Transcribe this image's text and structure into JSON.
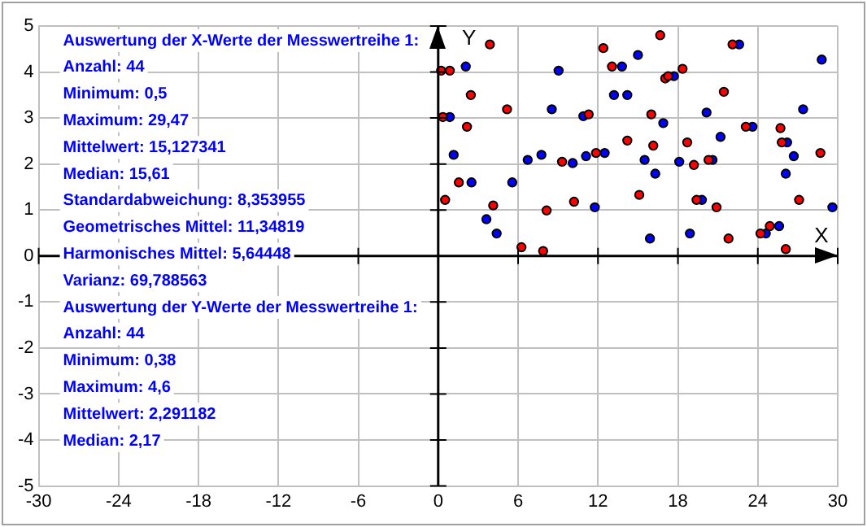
{
  "chart_data": {
    "type": "scatter",
    "xlabel": "X",
    "ylabel": "Y",
    "xlim": [
      -30,
      30
    ],
    "xticks": [
      -30,
      -24,
      -18,
      -12,
      -6,
      0,
      6,
      12,
      18,
      24,
      30
    ],
    "ylim": [
      -5,
      5
    ],
    "yticks": [
      -5,
      -4,
      -3,
      -2,
      -1,
      0,
      1,
      2,
      3,
      4,
      5
    ],
    "grid": true,
    "legend": false,
    "marker": "circle",
    "series": [
      {
        "color": "#ff0000",
        "x": [
          3.88,
          12.4,
          0.22,
          0.87,
          13.05,
          2.45,
          5.17,
          0.35,
          2.16,
          11.3,
          14.2,
          9.3,
          11.85,
          1.55,
          15.1,
          0.52,
          4.13,
          8.14,
          10.2,
          6.25,
          7.88,
          16.67,
          22.1,
          18.35,
          17.05,
          17.27,
          21.45,
          16.0,
          23.1,
          25.7,
          16.15,
          18.7,
          25.8,
          28.7,
          19.2,
          20.3,
          19.4,
          20.9,
          27.1,
          21.8,
          24.2,
          24.9,
          26.1
        ],
        "values": [
          4.6,
          4.52,
          4.03,
          4.03,
          4.12,
          3.5,
          3.19,
          3.02,
          2.81,
          3.08,
          2.51,
          2.05,
          2.24,
          1.6,
          1.33,
          1.22,
          1.1,
          0.99,
          1.18,
          0.19,
          0.11,
          4.8,
          4.6,
          4.07,
          3.86,
          3.91,
          3.57,
          3.08,
          2.81,
          2.78,
          2.4,
          2.47,
          2.47,
          2.24,
          1.98,
          2.09,
          1.22,
          1.06,
          1.22,
          0.38,
          0.49,
          0.65,
          0.15
        ]
      },
      {
        "color": "#0000ff",
        "x": [
          15.0,
          2.07,
          13.8,
          9.04,
          13.2,
          14.2,
          8.53,
          0.87,
          10.9,
          1.16,
          6.72,
          7.75,
          10.1,
          11.1,
          12.5,
          15.5,
          2.5,
          5.56,
          11.76,
          3.62,
          4.39,
          22.6,
          28.8,
          17.7,
          20.15,
          27.4,
          16.9,
          23.6,
          21.2,
          26.2,
          26.7,
          18.1,
          20.6,
          16.3,
          26.1,
          19.8,
          29.6,
          15.9,
          18.9,
          24.6,
          25.6
        ],
        "values": [
          4.37,
          4.12,
          4.12,
          4.03,
          3.5,
          3.5,
          3.19,
          3.02,
          3.04,
          2.2,
          2.09,
          2.2,
          2.02,
          2.17,
          2.24,
          2.09,
          1.6,
          1.6,
          1.06,
          0.8,
          0.49,
          4.6,
          4.27,
          3.91,
          3.12,
          3.19,
          2.89,
          2.81,
          2.59,
          2.47,
          2.17,
          2.05,
          2.09,
          1.79,
          1.79,
          1.22,
          1.06,
          0.38,
          0.49,
          0.49,
          0.65
        ]
      }
    ],
    "annotations": [
      "Auswertung der X-Werte der Messwertreihe 1:",
      "Anzahl: 44",
      "Minimum: 0,5",
      "Maximum: 29,47",
      "Mittelwert: 15,127341",
      "Median: 15,61",
      "Standardabweichung: 8,353955",
      "Geometrisches Mittel: 11,34819",
      "Harmonisches Mittel: 5,64448",
      "Varianz: 69,788563",
      "Auswertung der Y-Werte der Messwertreihe 1:",
      "Anzahl: 44",
      "Minimum: 0,38",
      "Maximum: 4,6",
      "Mittelwert: 2,291182",
      "Median: 2,17"
    ]
  }
}
